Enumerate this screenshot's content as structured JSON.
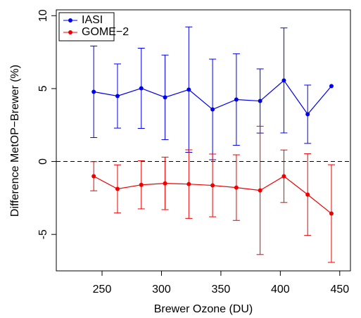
{
  "chart_data": {
    "type": "line",
    "xlabel": "Brewer Ozone (DU)",
    "ylabel": "Difference MetOP−Brewer (%)",
    "x": [
      243,
      263,
      283,
      303,
      323,
      343,
      363,
      383,
      403,
      423,
      443
    ],
    "series": [
      {
        "name": "IASI",
        "color": "#0000ee",
        "values": [
          4.78,
          4.49,
          5.02,
          4.4,
          4.93,
          3.57,
          4.25,
          4.15,
          5.56,
          3.24,
          5.17
        ],
        "errors": [
          3.14,
          2.2,
          2.75,
          2.9,
          4.3,
          3.45,
          3.14,
          2.2,
          3.6,
          2.0,
          null
        ]
      },
      {
        "name": "GOME−2",
        "color": "#ee0000",
        "values": [
          -1.01,
          -1.88,
          -1.6,
          -1.5,
          -1.55,
          -1.64,
          -1.79,
          -1.98,
          -1.01,
          -2.27,
          -3.57
        ],
        "errors": [
          1.0,
          1.65,
          1.65,
          1.8,
          2.35,
          2.15,
          2.25,
          4.4,
          1.8,
          2.8,
          3.35
        ]
      }
    ],
    "hline": 0,
    "xlim": [
      211.5,
      459
    ],
    "ylim": [
      -7.5,
      10.4
    ],
    "xticks": [
      250,
      300,
      350,
      400,
      450
    ],
    "yticks": [
      -5,
      0,
      5,
      10
    ],
    "legend": "top-left"
  }
}
